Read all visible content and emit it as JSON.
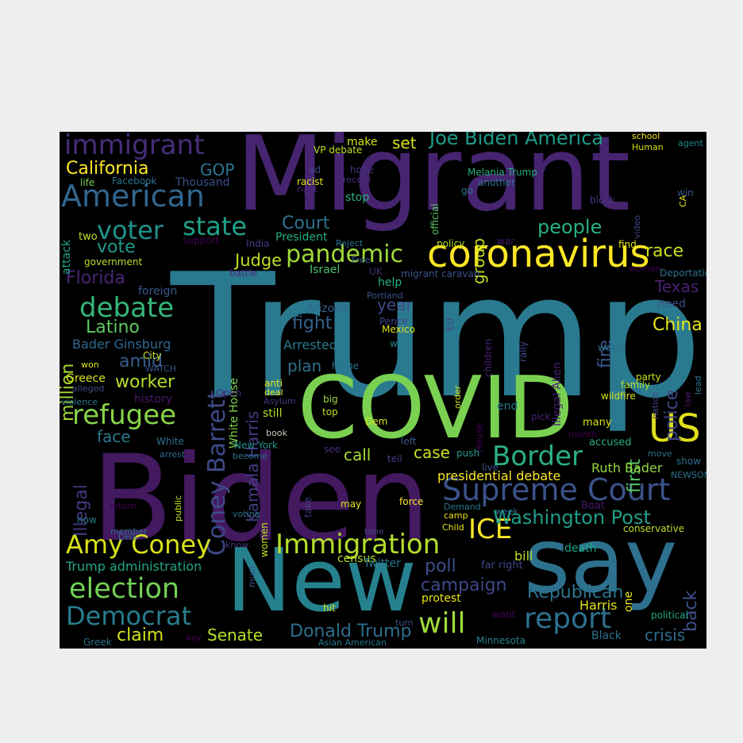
{
  "wordcloud": {
    "words": [
      {
        "text": "Trump",
        "color": "#2a7a8f"
      },
      {
        "text": "Migrant",
        "color": "#46246f"
      },
      {
        "text": "Biden",
        "color": "#43195f"
      },
      {
        "text": "COVID",
        "color": "#7ad151"
      },
      {
        "text": "New",
        "color": "#26818e"
      },
      {
        "text": "say",
        "color": "#2d718e"
      },
      {
        "text": "coronavirus",
        "color": "#fde725"
      },
      {
        "text": "Supreme Court",
        "color": "#3b528b"
      },
      {
        "text": "US",
        "color": "#e1e01d"
      },
      {
        "text": "Border",
        "color": "#2bb07f"
      },
      {
        "text": "American",
        "color": "#31668e"
      },
      {
        "text": "immigrant",
        "color": "#472d7b"
      },
      {
        "text": "Coney Barrett",
        "color": "#3e4a89"
      },
      {
        "text": "Immigration",
        "color": "#b5de2b"
      },
      {
        "text": "election",
        "color": "#73d056"
      },
      {
        "text": "Democrat",
        "color": "#287d8e"
      },
      {
        "text": "report",
        "color": "#2d708e"
      },
      {
        "text": "will",
        "color": "#9fda3a"
      },
      {
        "text": "Amy Coney",
        "color": "#d8e219"
      },
      {
        "text": "refugee",
        "color": "#86d549"
      },
      {
        "text": "debate",
        "color": "#35b779"
      },
      {
        "text": "voter",
        "color": "#21918c"
      },
      {
        "text": "state",
        "color": "#1fa187"
      },
      {
        "text": "pandemic",
        "color": "#a0da39"
      },
      {
        "text": "ICE",
        "color": "#fde725"
      },
      {
        "text": "Washington Post",
        "color": "#1f9e89"
      },
      {
        "text": "Joe Biden America",
        "color": "#1e9c89"
      },
      {
        "text": "Kamala Harris",
        "color": "#433e85"
      },
      {
        "text": "California",
        "color": "#fde725"
      },
      {
        "text": "Florida",
        "color": "#482576"
      },
      {
        "text": "Latino",
        "color": "#5ec962"
      },
      {
        "text": "people",
        "color": "#29af7f"
      },
      {
        "text": "vote",
        "color": "#1f9a8a"
      },
      {
        "text": "Court",
        "color": "#2c728e"
      },
      {
        "text": "Judge",
        "color": "#bddf26"
      },
      {
        "text": "race",
        "color": "#cde11d"
      },
      {
        "text": "campaign",
        "color": "#3f4788"
      },
      {
        "text": "poll",
        "color": "#3d4d8a"
      },
      {
        "text": "Republican",
        "color": "#2c738e"
      },
      {
        "text": "Donald Trump",
        "color": "#2e6e8e"
      },
      {
        "text": "claim",
        "color": "#d2e21b"
      },
      {
        "text": "Senate",
        "color": "#b8de29"
      },
      {
        "text": "crisis",
        "color": "#2f6c8e"
      },
      {
        "text": "worker",
        "color": "#b2dd2d"
      },
      {
        "text": "fight",
        "color": "#33628d"
      },
      {
        "text": "China",
        "color": "#e5e419"
      },
      {
        "text": "Texas",
        "color": "#482071"
      },
      {
        "text": "police",
        "color": "#414487"
      },
      {
        "text": "fire",
        "color": "#3a548c"
      },
      {
        "text": "first",
        "color": "#55c667"
      },
      {
        "text": "back",
        "color": "#3c508b"
      },
      {
        "text": "face",
        "color": "#2a788e"
      },
      {
        "text": "case",
        "color": "#cbe11e"
      },
      {
        "text": "call",
        "color": "#a8db34"
      },
      {
        "text": "plan",
        "color": "#2e6f8e"
      },
      {
        "text": "year",
        "color": "#3e4c8a"
      },
      {
        "text": "amid",
        "color": "#365d8d"
      },
      {
        "text": "million",
        "color": "#a5db36"
      },
      {
        "text": "Illegal",
        "color": "#453781"
      },
      {
        "text": "GOP",
        "color": "#2a768e"
      },
      {
        "text": "set",
        "color": "#d5e21a"
      },
      {
        "text": "group",
        "color": "#c5e021"
      },
      {
        "text": "Trump administration",
        "color": "#20a486"
      },
      {
        "text": "Harris",
        "color": "#e3e418"
      },
      {
        "text": "presidential debate",
        "color": "#fde725"
      },
      {
        "text": "Ruth Bader",
        "color": "#93d741"
      },
      {
        "text": "Bader Ginsburg",
        "color": "#31688e"
      },
      {
        "text": "Arrested",
        "color": "#2a788e"
      },
      {
        "text": "White House",
        "color": "#7fd34e"
      },
      {
        "text": "President",
        "color": "#27ad81"
      },
      {
        "text": "foreign",
        "color": "#38598c"
      },
      {
        "text": "Greece",
        "color": "#d8e219"
      },
      {
        "text": "bill",
        "color": "#bade28"
      },
      {
        "text": "death",
        "color": "#22a785"
      },
      {
        "text": "census",
        "color": "#b5de2b"
      },
      {
        "text": "Twitter",
        "color": "#2a788e"
      },
      {
        "text": "protest",
        "color": "#e7e419"
      },
      {
        "text": "history",
        "color": "#481769"
      },
      {
        "text": "Israel",
        "color": "#4ac16d"
      },
      {
        "text": "Arizona",
        "color": "#33638d"
      },
      {
        "text": "help",
        "color": "#29af7f"
      },
      {
        "text": "Pence",
        "color": "#3f4889"
      },
      {
        "text": "Mexico",
        "color": "#e2e418"
      },
      {
        "text": "warn",
        "color": "#277f8e"
      },
      {
        "text": "stop",
        "color": "#2db27d"
      },
      {
        "text": "hope",
        "color": "#46327e"
      },
      {
        "text": "make",
        "color": "#d2e21b"
      },
      {
        "text": "VP debate",
        "color": "#c0df25"
      },
      {
        "text": "Thousand",
        "color": "#3b528b"
      },
      {
        "text": "life",
        "color": "#77d153"
      },
      {
        "text": "Facebook",
        "color": "#2d708e"
      },
      {
        "text": "Melania Trump",
        "color": "#29af7f"
      },
      {
        "text": "another",
        "color": "#2d718e"
      },
      {
        "text": "school",
        "color": "#f1e51d"
      },
      {
        "text": "Human",
        "color": "#d0e11c"
      },
      {
        "text": "agent",
        "color": "#23898e"
      },
      {
        "text": "CA",
        "color": "#e3e418"
      },
      {
        "text": "win",
        "color": "#3a538b"
      },
      {
        "text": "video",
        "color": "#414487"
      },
      {
        "text": "block",
        "color": "#46337f"
      },
      {
        "text": "war",
        "color": "#48186a"
      },
      {
        "text": "find",
        "color": "#e5e419"
      },
      {
        "text": "policy",
        "color": "#b8de29"
      },
      {
        "text": "go",
        "color": "#2a768e"
      },
      {
        "text": "official",
        "color": "#5cc863"
      },
      {
        "text": "record",
        "color": "#472f7d"
      },
      {
        "text": "racist",
        "color": "#e5e419"
      },
      {
        "text": "right",
        "color": "#472c7a"
      },
      {
        "text": "ad",
        "color": "#3d4d8a"
      },
      {
        "text": "Reject",
        "color": "#2b748e"
      },
      {
        "text": "Free",
        "color": "#3a548c"
      },
      {
        "text": "India",
        "color": "#443983"
      },
      {
        "text": "support",
        "color": "#440154"
      },
      {
        "text": "two",
        "color": "#c2df23"
      },
      {
        "text": "attack",
        "color": "#21a685"
      },
      {
        "text": "government",
        "color": "#b5de2b"
      },
      {
        "text": "battle",
        "color": "#472a7a"
      },
      {
        "text": "UK",
        "color": "#472a7a"
      },
      {
        "text": "migrant caravan",
        "color": "#3b528b"
      },
      {
        "text": "Portland",
        "color": "#3b528b"
      },
      {
        "text": "EU",
        "color": "#3e4989"
      },
      {
        "text": "children",
        "color": "#482475"
      },
      {
        "text": "rally",
        "color": "#3e4989"
      },
      {
        "text": "Illegal Alien",
        "color": "#481d6f"
      },
      {
        "text": "woman",
        "color": "#440154"
      },
      {
        "text": "Deportation",
        "color": "#2d708e"
      },
      {
        "text": "need",
        "color": "#3c4f8a"
      },
      {
        "text": "world",
        "color": "#2c728e"
      },
      {
        "text": "nation",
        "color": "#414487"
      },
      {
        "text": "lead",
        "color": "#2c738e"
      },
      {
        "text": "law",
        "color": "#481769"
      },
      {
        "text": "party",
        "color": "#c5e021"
      },
      {
        "text": "family",
        "color": "#b5de2b"
      },
      {
        "text": "wildfire",
        "color": "#d5e21a"
      },
      {
        "text": "pick",
        "color": "#482071"
      },
      {
        "text": "many",
        "color": "#d8e219"
      },
      {
        "text": "month",
        "color": "#440154"
      },
      {
        "text": "accused",
        "color": "#29af7f"
      },
      {
        "text": "end",
        "color": "#287c8e"
      },
      {
        "text": "Dem",
        "color": "#d8e219"
      },
      {
        "text": "top",
        "color": "#c2df23"
      },
      {
        "text": "big",
        "color": "#a2da37"
      },
      {
        "text": "House",
        "color": "#440154"
      },
      {
        "text": "order",
        "color": "#d2e21b"
      },
      {
        "text": "move",
        "color": "#2d708e"
      },
      {
        "text": "show",
        "color": "#2e6e8e"
      },
      {
        "text": "NEWSOM",
        "color": "#2c728e"
      },
      {
        "text": "Boat",
        "color": "#48186a"
      },
      {
        "text": "live",
        "color": "#3b528b"
      },
      {
        "text": "push",
        "color": "#1f988b"
      },
      {
        "text": "left",
        "color": "#39568c"
      },
      {
        "text": "tell",
        "color": "#433e85"
      },
      {
        "text": "Demand",
        "color": "#2a778e"
      },
      {
        "text": "camp",
        "color": "#e5e419"
      },
      {
        "text": "Child",
        "color": "#e3e418"
      },
      {
        "text": "week",
        "color": "#2d708e"
      },
      {
        "text": "time",
        "color": "#414487"
      },
      {
        "text": "force",
        "color": "#fde725"
      },
      {
        "text": "may",
        "color": "#e3e418"
      },
      {
        "text": "conservative",
        "color": "#bddf26"
      },
      {
        "text": "far right",
        "color": "#3f4788"
      },
      {
        "text": "one",
        "color": "#eae51a"
      },
      {
        "text": "want",
        "color": "#46085c"
      },
      {
        "text": "political",
        "color": "#21a585"
      },
      {
        "text": "Black",
        "color": "#2c728e"
      },
      {
        "text": "Minnesota",
        "color": "#25848e"
      },
      {
        "text": "Asian American",
        "color": "#2a788e"
      },
      {
        "text": "turn",
        "color": "#3d4d8a"
      },
      {
        "text": "hit",
        "color": "#d0e11c"
      },
      {
        "text": "women",
        "color": "#c8e020"
      },
      {
        "text": "must",
        "color": "#3b528b"
      },
      {
        "text": "know",
        "color": "#46327e"
      },
      {
        "text": "take",
        "color": "#433e85"
      },
      {
        "text": "see",
        "color": "#472c7a"
      },
      {
        "text": "still",
        "color": "#b5de2b"
      },
      {
        "text": "book",
        "color": "#ccb"
      },
      {
        "text": "become",
        "color": "#2d708e"
      },
      {
        "text": "New York",
        "color": "#21918c"
      },
      {
        "text": "anti",
        "color": "#eae51a"
      },
      {
        "text": "deal",
        "color": "#e5e419"
      },
      {
        "text": "Asylum",
        "color": "#443983"
      },
      {
        "text": "Open",
        "color": "#472c7a"
      },
      {
        "text": "home",
        "color": "#2c728e"
      },
      {
        "text": "voting",
        "color": "#2c728e"
      },
      {
        "text": "member",
        "color": "#2d708e"
      },
      {
        "text": "DHS",
        "color": "#2c728e"
      },
      {
        "text": "return",
        "color": "#440154"
      },
      {
        "text": "now",
        "color": "#287d8e"
      },
      {
        "text": "public",
        "color": "#c5e021"
      },
      {
        "text": "arrest",
        "color": "#2d708e"
      },
      {
        "text": "White",
        "color": "#2d708e"
      },
      {
        "text": "violence",
        "color": "#2a788e"
      },
      {
        "text": "alleged",
        "color": "#3e4989"
      },
      {
        "text": "won",
        "color": "#e3e418"
      },
      {
        "text": "WATCH",
        "color": "#3b528b"
      },
      {
        "text": "City",
        "color": "#cde11d"
      },
      {
        "text": "Greek",
        "color": "#2d708e"
      },
      {
        "text": "key",
        "color": "#440154"
      }
    ]
  }
}
